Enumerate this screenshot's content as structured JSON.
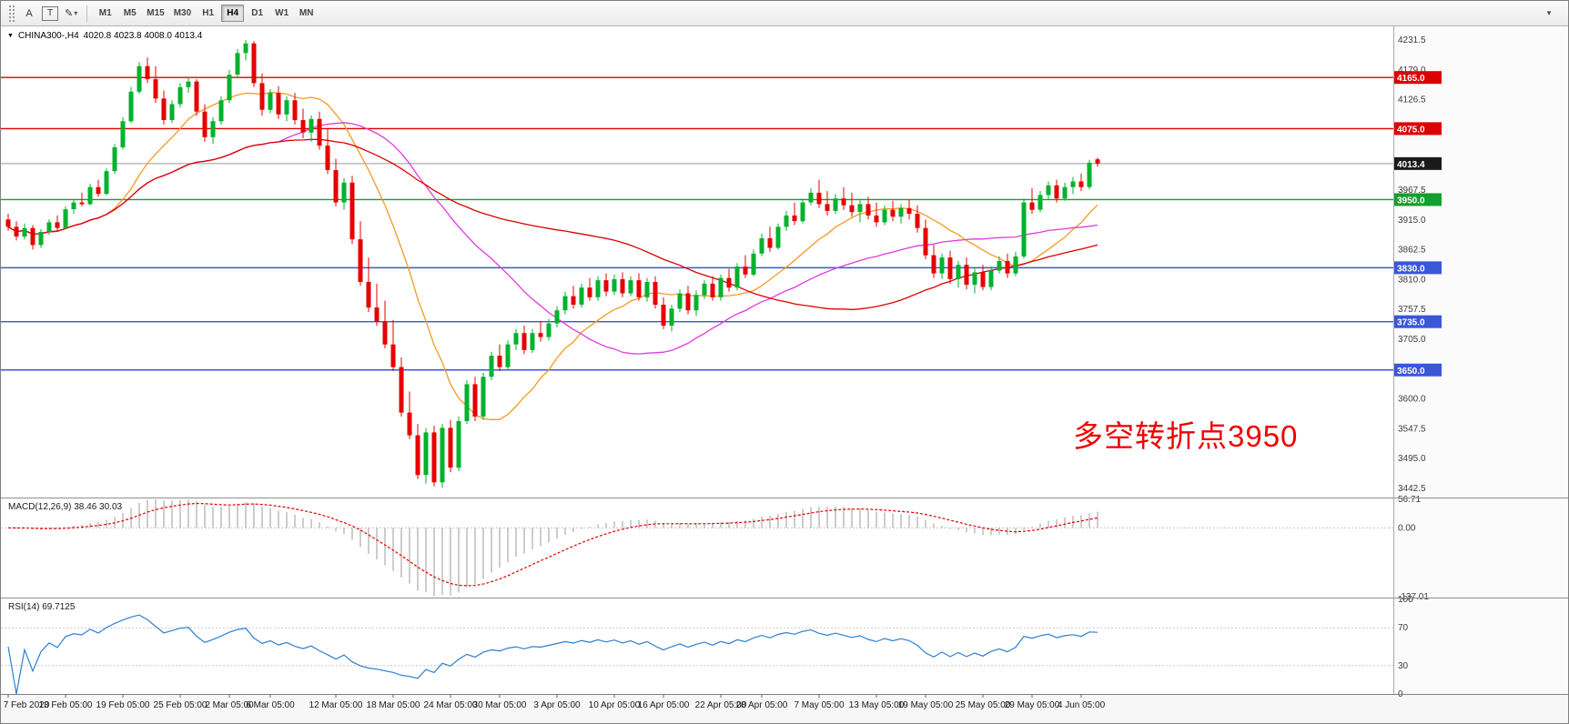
{
  "toolbar": {
    "tools": [
      {
        "name": "text-tool",
        "label": "A",
        "boxed": false,
        "caret": false
      },
      {
        "name": "text-frame-tool",
        "label": "T",
        "boxed": true,
        "caret": false
      },
      {
        "name": "draw-tool",
        "label": "✎",
        "boxed": false,
        "caret": true
      }
    ],
    "caret_icon": "▾",
    "right_icon_glyph": "▾",
    "timeframes": [
      {
        "label": "M1",
        "active": false
      },
      {
        "label": "M5",
        "active": false
      },
      {
        "label": "M15",
        "active": false
      },
      {
        "label": "M30",
        "active": false
      },
      {
        "label": "H1",
        "active": false
      },
      {
        "label": "H4",
        "active": true
      },
      {
        "label": "D1",
        "active": false
      },
      {
        "label": "W1",
        "active": false
      },
      {
        "label": "MN",
        "active": false
      }
    ]
  },
  "chart_header": {
    "collapse_icon": "▼",
    "symbol": "CHINA300-,H4",
    "ohlc": "4020.8 4023.8 4008.0 4013.4"
  },
  "annotation": {
    "text": "多空转折点3950",
    "color": "#ee0000"
  },
  "macd_panel": {
    "label": "MACD(12,26,9) 38.46 30.03"
  },
  "rsi_panel": {
    "label": "RSI(14) 69.7125"
  },
  "chart_data": {
    "type": "candlestick",
    "symbol": "CHINA300-",
    "timeframe": "H4",
    "price_axis": {
      "range_top": 4255,
      "range_bottom": 3427,
      "ticks": [
        "4231.5",
        "4179.0",
        "4126.5",
        "3967.5",
        "3915.0",
        "3862.5",
        "3810.0",
        "3757.5",
        "3705.0",
        "3600.0",
        "3547.5",
        "3495.0",
        "3442.5"
      ]
    },
    "current_price": {
      "value": 4013.4,
      "label": "4013.4",
      "tag_color": "#1a1a1a",
      "line_color": "#9a9a9a"
    },
    "horizontal_levels": [
      {
        "value": 4165.0,
        "label": "4165.0",
        "color": "#dd0000"
      },
      {
        "value": 4075.0,
        "label": "4075.0",
        "color": "#dd0000"
      },
      {
        "value": 3950.0,
        "label": "3950.0",
        "color": "#12a02e"
      },
      {
        "value": 3830.0,
        "label": "3830.0",
        "color": "#3a57d7"
      },
      {
        "value": 3735.0,
        "label": "3735.0",
        "color": "#3a57d7"
      },
      {
        "value": 3650.0,
        "label": "3650.0",
        "color": "#3a57d7"
      }
    ],
    "candle_colors": {
      "up": "#00b22d",
      "down": "#e60000"
    },
    "moving_averages": [
      {
        "period": 13,
        "color": "#f59a23"
      },
      {
        "period": 34,
        "color": "#e03ae0"
      },
      {
        "period": 62,
        "color": "#dd0000"
      }
    ],
    "macd": {
      "fast": 12,
      "slow": 26,
      "signal_period": 9,
      "axis_labels": [
        "56.71",
        "0.00",
        "-137.01"
      ],
      "axis_values": [
        56.71,
        0,
        -137.01
      ],
      "histogram_color": "#9b9b9b",
      "signal_color": "#e00000"
    },
    "rsi": {
      "period": 14,
      "levels": [
        70,
        30
      ],
      "axis_labels": [
        "100",
        "70",
        "30",
        "0"
      ],
      "axis_values": [
        100,
        70,
        30,
        0
      ],
      "line_color": "#2d7fd3"
    },
    "time_axis": [
      {
        "i": 0,
        "label": "7 Feb 2020"
      },
      {
        "i": 7,
        "label": "13 Feb 05:00"
      },
      {
        "i": 14,
        "label": "19 Feb 05:00"
      },
      {
        "i": 21,
        "label": "25 Feb 05:00"
      },
      {
        "i": 27,
        "label": "2 Mar 05:00"
      },
      {
        "i": 32,
        "label": "6 Mar 05:00"
      },
      {
        "i": 40,
        "label": "12 Mar 05:00"
      },
      {
        "i": 47,
        "label": "18 Mar 05:00"
      },
      {
        "i": 54,
        "label": "24 Mar 05:00"
      },
      {
        "i": 60,
        "label": "30 Mar 05:00"
      },
      {
        "i": 67,
        "label": "3 Apr 05:00"
      },
      {
        "i": 74,
        "label": "10 Apr 05:00"
      },
      {
        "i": 80,
        "label": "16 Apr 05:00"
      },
      {
        "i": 87,
        "label": "22 Apr 05:00"
      },
      {
        "i": 92,
        "label": "28 Apr 05:00"
      },
      {
        "i": 99,
        "label": "7 May 05:00"
      },
      {
        "i": 106,
        "label": "13 May 05:00"
      },
      {
        "i": 112,
        "label": "19 May 05:00"
      },
      {
        "i": 119,
        "label": "25 May 05:00"
      },
      {
        "i": 125,
        "label": "29 May 05:00"
      },
      {
        "i": 131,
        "label": "4 Jun 05:00"
      }
    ],
    "candles": [
      [
        3915,
        3925,
        3895,
        3902
      ],
      [
        3902,
        3912,
        3878,
        3885
      ],
      [
        3885,
        3908,
        3880,
        3900
      ],
      [
        3900,
        3905,
        3862,
        3870
      ],
      [
        3870,
        3898,
        3865,
        3893
      ],
      [
        3893,
        3915,
        3888,
        3910
      ],
      [
        3910,
        3922,
        3895,
        3900
      ],
      [
        3900,
        3938,
        3898,
        3933
      ],
      [
        3933,
        3950,
        3925,
        3945
      ],
      [
        3945,
        3962,
        3938,
        3942
      ],
      [
        3942,
        3978,
        3940,
        3972
      ],
      [
        3972,
        3985,
        3955,
        3960
      ],
      [
        3960,
        4005,
        3958,
        4000
      ],
      [
        4000,
        4048,
        3995,
        4042
      ],
      [
        4042,
        4095,
        4038,
        4088
      ],
      [
        4088,
        4148,
        4085,
        4140
      ],
      [
        4140,
        4192,
        4136,
        4185
      ],
      [
        4185,
        4200,
        4155,
        4162
      ],
      [
        4162,
        4185,
        4120,
        4128
      ],
      [
        4128,
        4142,
        4082,
        4090
      ],
      [
        4090,
        4125,
        4085,
        4118
      ],
      [
        4118,
        4155,
        4112,
        4148
      ],
      [
        4148,
        4165,
        4138,
        4158
      ],
      [
        4158,
        4162,
        4098,
        4105
      ],
      [
        4105,
        4118,
        4052,
        4060
      ],
      [
        4060,
        4095,
        4048,
        4088
      ],
      [
        4088,
        4132,
        4082,
        4125
      ],
      [
        4125,
        4178,
        4120,
        4170
      ],
      [
        4170,
        4215,
        4165,
        4208
      ],
      [
        4208,
        4231,
        4195,
        4225
      ],
      [
        4225,
        4229,
        4148,
        4155
      ],
      [
        4155,
        4172,
        4098,
        4108
      ],
      [
        4108,
        4145,
        4102,
        4138
      ],
      [
        4138,
        4150,
        4092,
        4100
      ],
      [
        4100,
        4132,
        4088,
        4125
      ],
      [
        4125,
        4138,
        4082,
        4090
      ],
      [
        4090,
        4110,
        4058,
        4068
      ],
      [
        4068,
        4098,
        4052,
        4092
      ],
      [
        4092,
        4105,
        4038,
        4045
      ],
      [
        4045,
        4075,
        3995,
        4002
      ],
      [
        4002,
        4022,
        3938,
        3945
      ],
      [
        3945,
        3988,
        3932,
        3980
      ],
      [
        3980,
        3992,
        3872,
        3880
      ],
      [
        3880,
        3912,
        3798,
        3805
      ],
      [
        3805,
        3848,
        3752,
        3760
      ],
      [
        3760,
        3802,
        3728,
        3735
      ],
      [
        3735,
        3772,
        3688,
        3695
      ],
      [
        3695,
        3738,
        3648,
        3655
      ],
      [
        3655,
        3672,
        3568,
        3575
      ],
      [
        3575,
        3612,
        3528,
        3535
      ],
      [
        3535,
        3555,
        3458,
        3465
      ],
      [
        3465,
        3548,
        3450,
        3540
      ],
      [
        3540,
        3552,
        3445,
        3452
      ],
      [
        3452,
        3555,
        3442.5,
        3548
      ],
      [
        3548,
        3562,
        3470,
        3478
      ],
      [
        3478,
        3568,
        3472,
        3560
      ],
      [
        3560,
        3632,
        3555,
        3625
      ],
      [
        3625,
        3638,
        3560,
        3568
      ],
      [
        3568,
        3645,
        3562,
        3638
      ],
      [
        3638,
        3682,
        3632,
        3675
      ],
      [
        3675,
        3695,
        3648,
        3655
      ],
      [
        3655,
        3702,
        3650,
        3695
      ],
      [
        3695,
        3722,
        3685,
        3715
      ],
      [
        3715,
        3728,
        3678,
        3685
      ],
      [
        3685,
        3722,
        3680,
        3715
      ],
      [
        3715,
        3735,
        3700,
        3708
      ],
      [
        3708,
        3740,
        3702,
        3732
      ],
      [
        3732,
        3762,
        3725,
        3755
      ],
      [
        3755,
        3788,
        3748,
        3780
      ],
      [
        3780,
        3798,
        3758,
        3765
      ],
      [
        3765,
        3802,
        3760,
        3795
      ],
      [
        3795,
        3812,
        3772,
        3778
      ],
      [
        3778,
        3815,
        3772,
        3808
      ],
      [
        3808,
        3820,
        3780,
        3788
      ],
      [
        3788,
        3818,
        3782,
        3810
      ],
      [
        3810,
        3822,
        3778,
        3785
      ],
      [
        3785,
        3815,
        3780,
        3808
      ],
      [
        3808,
        3820,
        3772,
        3778
      ],
      [
        3778,
        3812,
        3770,
        3805
      ],
      [
        3805,
        3815,
        3758,
        3765
      ],
      [
        3765,
        3778,
        3722,
        3728
      ],
      [
        3728,
        3765,
        3718,
        3758
      ],
      [
        3758,
        3792,
        3752,
        3785
      ],
      [
        3785,
        3798,
        3748,
        3755
      ],
      [
        3755,
        3790,
        3745,
        3782
      ],
      [
        3782,
        3808,
        3775,
        3802
      ],
      [
        3802,
        3815,
        3772,
        3778
      ],
      [
        3778,
        3818,
        3772,
        3812
      ],
      [
        3812,
        3828,
        3788,
        3795
      ],
      [
        3795,
        3838,
        3790,
        3832
      ],
      [
        3832,
        3852,
        3812,
        3818
      ],
      [
        3818,
        3862,
        3815,
        3855
      ],
      [
        3855,
        3890,
        3850,
        3882
      ],
      [
        3882,
        3902,
        3858,
        3865
      ],
      [
        3865,
        3908,
        3862,
        3902
      ],
      [
        3902,
        3930,
        3895,
        3922
      ],
      [
        3922,
        3945,
        3905,
        3912
      ],
      [
        3912,
        3952,
        3908,
        3945
      ],
      [
        3945,
        3970,
        3940,
        3962
      ],
      [
        3962,
        3985,
        3935,
        3942
      ],
      [
        3942,
        3965,
        3922,
        3930
      ],
      [
        3930,
        3960,
        3925,
        3952
      ],
      [
        3952,
        3972,
        3932,
        3940
      ],
      [
        3940,
        3962,
        3920,
        3928
      ],
      [
        3928,
        3950,
        3910,
        3942
      ],
      [
        3942,
        3955,
        3915,
        3922
      ],
      [
        3922,
        3945,
        3902,
        3910
      ],
      [
        3910,
        3940,
        3905,
        3932
      ],
      [
        3932,
        3948,
        3912,
        3920
      ],
      [
        3920,
        3942,
        3908,
        3935
      ],
      [
        3935,
        3950,
        3915,
        3925
      ],
      [
        3925,
        3940,
        3892,
        3900
      ],
      [
        3900,
        3915,
        3845,
        3852
      ],
      [
        3852,
        3870,
        3812,
        3820
      ],
      [
        3820,
        3855,
        3810,
        3848
      ],
      [
        3848,
        3860,
        3802,
        3810
      ],
      [
        3810,
        3842,
        3795,
        3835
      ],
      [
        3835,
        3848,
        3792,
        3800
      ],
      [
        3800,
        3830,
        3785,
        3822
      ],
      [
        3822,
        3835,
        3790,
        3796
      ],
      [
        3796,
        3832,
        3790,
        3825
      ],
      [
        3825,
        3850,
        3820,
        3842
      ],
      [
        3842,
        3855,
        3812,
        3820
      ],
      [
        3820,
        3858,
        3815,
        3850
      ],
      [
        3850,
        3952,
        3846,
        3945
      ],
      [
        3945,
        3970,
        3925,
        3932
      ],
      [
        3932,
        3965,
        3928,
        3958
      ],
      [
        3958,
        3982,
        3950,
        3975
      ],
      [
        3975,
        3985,
        3945,
        3952
      ],
      [
        3952,
        3980,
        3948,
        3972
      ],
      [
        3972,
        3990,
        3960,
        3982
      ],
      [
        3982,
        3996,
        3965,
        3972
      ],
      [
        3972,
        4020,
        3968,
        4015
      ],
      [
        4020.8,
        4023.8,
        4008.0,
        4013.4
      ]
    ]
  }
}
